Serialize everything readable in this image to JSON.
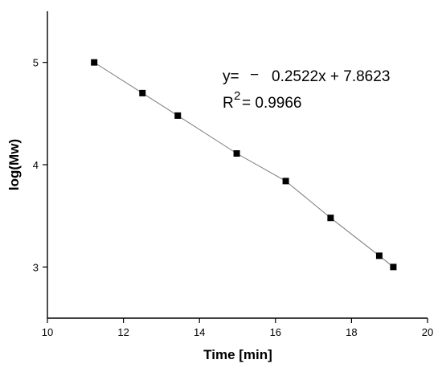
{
  "chart_data": {
    "type": "scatter",
    "xlabel": "Time [min]",
    "ylabel": "log(Mw)",
    "xlim": [
      10,
      20
    ],
    "ylim": [
      2.5,
      5.5
    ],
    "x_ticks": [
      10,
      12,
      14,
      16,
      18,
      20
    ],
    "y_ticks": [
      3,
      4,
      5
    ],
    "grid": false,
    "series": [
      {
        "x": [
          11.23,
          12.5,
          13.43,
          14.98,
          16.27,
          17.45,
          18.73,
          19.1
        ],
        "y": [
          5.0,
          4.7,
          4.48,
          4.11,
          3.84,
          3.48,
          3.11,
          3.0
        ],
        "color": "#000000",
        "marker": "square",
        "line_color": "#7a7a7a"
      }
    ],
    "annotations": {
      "equation_prefix": "y=",
      "equation_minus": "−",
      "equation_rest": "0.2522x + 7.8623",
      "r2_base": "R",
      "r2_exp": "2",
      "r2_value": "= 0.9966"
    }
  }
}
